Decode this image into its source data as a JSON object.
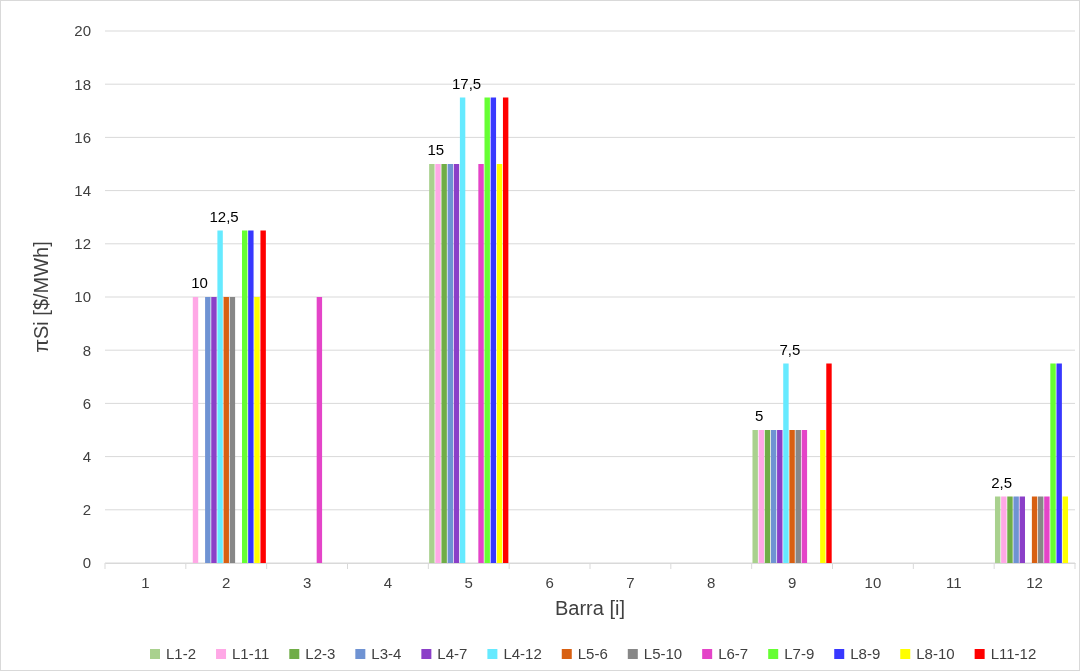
{
  "chart_data": {
    "type": "bar",
    "xlabel": "Barra [i]",
    "ylabel": "πSi [$/MWh]",
    "categories": [
      "1",
      "2",
      "3",
      "4",
      "5",
      "6",
      "7",
      "8",
      "9",
      "10",
      "11",
      "12"
    ],
    "series": [
      {
        "name": "L1-2",
        "color": "#a9d18e",
        "values": [
          0,
          0,
          0,
          0,
          15,
          0,
          0,
          0,
          5,
          0,
          0,
          2.5
        ]
      },
      {
        "name": "L1-11",
        "color": "#ffa8e6",
        "values": [
          0,
          10,
          0,
          0,
          15,
          0,
          0,
          0,
          5,
          0,
          0,
          2.5
        ]
      },
      {
        "name": "L2-3",
        "color": "#70ad47",
        "values": [
          0,
          0,
          0,
          0,
          15,
          0,
          0,
          0,
          5,
          0,
          0,
          2.5
        ]
      },
      {
        "name": "L3-4",
        "color": "#6f93d3",
        "values": [
          0,
          10,
          0,
          0,
          15,
          0,
          0,
          0,
          5,
          0,
          0,
          2.5
        ]
      },
      {
        "name": "L4-7",
        "color": "#8b3fc8",
        "values": [
          0,
          10,
          0,
          0,
          15,
          0,
          0,
          0,
          5,
          0,
          0,
          2.5
        ]
      },
      {
        "name": "L4-12",
        "color": "#66eaff",
        "values": [
          0,
          12.5,
          0,
          0,
          17.5,
          0,
          0,
          0,
          7.5,
          0,
          0,
          0
        ]
      },
      {
        "name": "L5-6",
        "color": "#d86012",
        "values": [
          0,
          10,
          0,
          0,
          0,
          0,
          0,
          0,
          5,
          0,
          0,
          2.5
        ]
      },
      {
        "name": "L5-10",
        "color": "#878787",
        "values": [
          0,
          10,
          0,
          0,
          0,
          0,
          0,
          0,
          5,
          0,
          0,
          2.5
        ]
      },
      {
        "name": "L6-7",
        "color": "#e444c8",
        "values": [
          0,
          0,
          10,
          0,
          15,
          0,
          0,
          0,
          5,
          0,
          0,
          2.5
        ]
      },
      {
        "name": "L7-9",
        "color": "#66ff33",
        "values": [
          0,
          12.5,
          0,
          0,
          17.5,
          0,
          0,
          0,
          0,
          0,
          0,
          7.5
        ]
      },
      {
        "name": "L8-9",
        "color": "#3838ff",
        "values": [
          0,
          12.5,
          0,
          0,
          17.5,
          0,
          0,
          0,
          0,
          0,
          0,
          7.5
        ]
      },
      {
        "name": "L8-10",
        "color": "#ffff00",
        "values": [
          0,
          10,
          0,
          0,
          15,
          0,
          0,
          0,
          5,
          0,
          0,
          2.5
        ]
      },
      {
        "name": "L11-12",
        "color": "#ff0000",
        "values": [
          0,
          12.5,
          0,
          0,
          17.5,
          0,
          0,
          0,
          7.5,
          0,
          0,
          0
        ]
      }
    ],
    "ylim": [
      0,
      20
    ],
    "yticks": [
      0,
      2,
      4,
      6,
      8,
      10,
      12,
      14,
      16,
      18,
      20
    ],
    "grid": "y",
    "legend": "bottom",
    "annotations": [
      {
        "text": "10",
        "x": "2",
        "y": 10
      },
      {
        "text": "12,5",
        "x": "2",
        "y": 12.5
      },
      {
        "text": "15",
        "x": "5",
        "y": 15
      },
      {
        "text": "17,5",
        "x": "5",
        "y": 17.5
      },
      {
        "text": "5",
        "x": "9",
        "y": 5
      },
      {
        "text": "7,5",
        "x": "9",
        "y": 7.5
      },
      {
        "text": "2,5",
        "x": "12",
        "y": 2.5
      }
    ]
  }
}
